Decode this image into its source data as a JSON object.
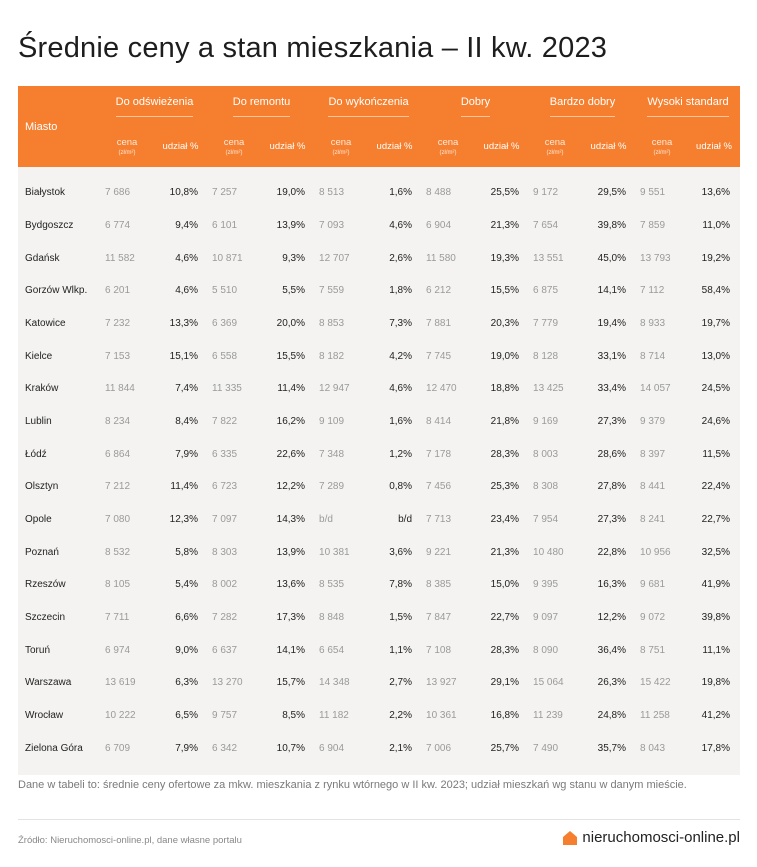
{
  "title": "Średnie ceny a stan mieszkania – II kw. 2023",
  "header": {
    "city_label": "Miasto",
    "groups": [
      "Do odświeżenia",
      "Do remontu",
      "Do wykończenia",
      "Dobry",
      "Bardzo dobry",
      "Wysoki standard"
    ],
    "price_label": "cena",
    "price_unit": "(zł/m²)",
    "share_label": "udział %"
  },
  "rows": [
    {
      "city": "Białystok",
      "cells": [
        [
          "7 686",
          "10,8%"
        ],
        [
          "7 257",
          "19,0%"
        ],
        [
          "8 513",
          "1,6%"
        ],
        [
          "8 488",
          "25,5%"
        ],
        [
          "9 172",
          "29,5%"
        ],
        [
          "9 551",
          "13,6%"
        ]
      ]
    },
    {
      "city": "Bydgoszcz",
      "cells": [
        [
          "6 774",
          "9,4%"
        ],
        [
          "6 101",
          "13,9%"
        ],
        [
          "7 093",
          "4,6%"
        ],
        [
          "6 904",
          "21,3%"
        ],
        [
          "7 654",
          "39,8%"
        ],
        [
          "7 859",
          "11,0%"
        ]
      ]
    },
    {
      "city": "Gdańsk",
      "cells": [
        [
          "11 582",
          "4,6%"
        ],
        [
          "10 871",
          "9,3%"
        ],
        [
          "12 707",
          "2,6%"
        ],
        [
          "11 580",
          "19,3%"
        ],
        [
          "13 551",
          "45,0%"
        ],
        [
          "13 793",
          "19,2%"
        ]
      ]
    },
    {
      "city": "Gorzów Wlkp.",
      "cells": [
        [
          "6 201",
          "4,6%"
        ],
        [
          "5 510",
          "5,5%"
        ],
        [
          "7 559",
          "1,8%"
        ],
        [
          "6 212",
          "15,5%"
        ],
        [
          "6 875",
          "14,1%"
        ],
        [
          "7 112",
          "58,4%"
        ]
      ]
    },
    {
      "city": "Katowice",
      "cells": [
        [
          "7 232",
          "13,3%"
        ],
        [
          "6 369",
          "20,0%"
        ],
        [
          "8 853",
          "7,3%"
        ],
        [
          "7 881",
          "20,3%"
        ],
        [
          "7 779",
          "19,4%"
        ],
        [
          "8 933",
          "19,7%"
        ]
      ]
    },
    {
      "city": "Kielce",
      "cells": [
        [
          "7 153",
          "15,1%"
        ],
        [
          "6 558",
          "15,5%"
        ],
        [
          "8 182",
          "4,2%"
        ],
        [
          "7 745",
          "19,0%"
        ],
        [
          "8 128",
          "33,1%"
        ],
        [
          "8 714",
          "13,0%"
        ]
      ]
    },
    {
      "city": "Kraków",
      "cells": [
        [
          "11 844",
          "7,4%"
        ],
        [
          "11 335",
          "11,4%"
        ],
        [
          "12 947",
          "4,6%"
        ],
        [
          "12 470",
          "18,8%"
        ],
        [
          "13 425",
          "33,4%"
        ],
        [
          "14 057",
          "24,5%"
        ]
      ]
    },
    {
      "city": "Lublin",
      "cells": [
        [
          "8 234",
          "8,4%"
        ],
        [
          "7 822",
          "16,2%"
        ],
        [
          "9 109",
          "1,6%"
        ],
        [
          "8 414",
          "21,8%"
        ],
        [
          "9 169",
          "27,3%"
        ],
        [
          "9 379",
          "24,6%"
        ]
      ]
    },
    {
      "city": "Łódź",
      "cells": [
        [
          "6 864",
          "7,9%"
        ],
        [
          "6 335",
          "22,6%"
        ],
        [
          "7 348",
          "1,2%"
        ],
        [
          "7 178",
          "28,3%"
        ],
        [
          "8 003",
          "28,6%"
        ],
        [
          "8 397",
          "11,5%"
        ]
      ]
    },
    {
      "city": "Olsztyn",
      "cells": [
        [
          "7 212",
          "11,4%"
        ],
        [
          "6 723",
          "12,2%"
        ],
        [
          "7 289",
          "0,8%"
        ],
        [
          "7 456",
          "25,3%"
        ],
        [
          "8 308",
          "27,8%"
        ],
        [
          "8 441",
          "22,4%"
        ]
      ]
    },
    {
      "city": "Opole",
      "cells": [
        [
          "7 080",
          "12,3%"
        ],
        [
          "7 097",
          "14,3%"
        ],
        [
          "b/d",
          "b/d"
        ],
        [
          "7 713",
          "23,4%"
        ],
        [
          "7 954",
          "27,3%"
        ],
        [
          "8 241",
          "22,7%"
        ]
      ]
    },
    {
      "city": "Poznań",
      "cells": [
        [
          "8 532",
          "5,8%"
        ],
        [
          "8 303",
          "13,9%"
        ],
        [
          "10 381",
          "3,6%"
        ],
        [
          "9 221",
          "21,3%"
        ],
        [
          "10 480",
          "22,8%"
        ],
        [
          "10 956",
          "32,5%"
        ]
      ]
    },
    {
      "city": "Rzeszów",
      "cells": [
        [
          "8 105",
          "5,4%"
        ],
        [
          "8 002",
          "13,6%"
        ],
        [
          "8 535",
          "7,8%"
        ],
        [
          "8 385",
          "15,0%"
        ],
        [
          "9 395",
          "16,3%"
        ],
        [
          "9 681",
          "41,9%"
        ]
      ]
    },
    {
      "city": "Szczecin",
      "cells": [
        [
          "7 711",
          "6,6%"
        ],
        [
          "7 282",
          "17,3%"
        ],
        [
          "8 848",
          "1,5%"
        ],
        [
          "7 847",
          "22,7%"
        ],
        [
          "9 097",
          "12,2%"
        ],
        [
          "9 072",
          "39,8%"
        ]
      ]
    },
    {
      "city": "Toruń",
      "cells": [
        [
          "6 974",
          "9,0%"
        ],
        [
          "6 637",
          "14,1%"
        ],
        [
          "6 654",
          "1,1%"
        ],
        [
          "7 108",
          "28,3%"
        ],
        [
          "8 090",
          "36,4%"
        ],
        [
          "8 751",
          "11,1%"
        ]
      ]
    },
    {
      "city": "Warszawa",
      "cells": [
        [
          "13 619",
          "6,3%"
        ],
        [
          "13 270",
          "15,7%"
        ],
        [
          "14 348",
          "2,7%"
        ],
        [
          "13 927",
          "29,1%"
        ],
        [
          "15 064",
          "26,3%"
        ],
        [
          "15 422",
          "19,8%"
        ]
      ]
    },
    {
      "city": "Wrocław",
      "cells": [
        [
          "10 222",
          "6,5%"
        ],
        [
          "9 757",
          "8,5%"
        ],
        [
          "11 182",
          "2,2%"
        ],
        [
          "10 361",
          "16,8%"
        ],
        [
          "11 239",
          "24,8%"
        ],
        [
          "11 258",
          "41,2%"
        ]
      ]
    },
    {
      "city": "Zielona Góra",
      "cells": [
        [
          "6 709",
          "7,9%"
        ],
        [
          "6 342",
          "10,7%"
        ],
        [
          "6 904",
          "2,1%"
        ],
        [
          "7 006",
          "25,7%"
        ],
        [
          "7 490",
          "35,7%"
        ],
        [
          "8 043",
          "17,8%"
        ]
      ]
    }
  ],
  "note": "Dane w tabeli to: średnie ceny ofertowe za mkw. mieszkania z rynku wtórnego w II kw. 2023; udział mieszkań wg stanu w danym mieście.",
  "source": "Źródło: Nieruchomosci-online.pl, dane własne portalu",
  "brand": {
    "name": "nieruchomosci-online.pl",
    "icon": "house-icon",
    "color": "#f57f2e"
  },
  "colors": {
    "header_bg": "#f57f2e",
    "body_bg": "#f4f3f1"
  }
}
